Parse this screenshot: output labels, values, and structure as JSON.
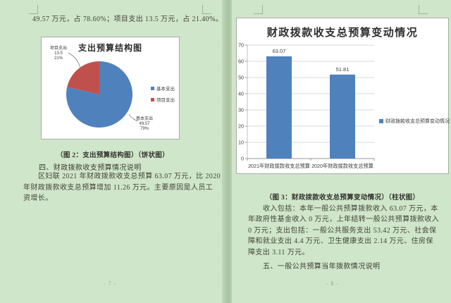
{
  "app": {
    "view": "document-editor-eye-protection-mode",
    "colors": {
      "background_green": "#cfe6ca",
      "page_gap_green": "#aec8a8",
      "chart_background": "#ffffff",
      "bar_blue": "#4f81bd",
      "pie_red": "#c0504d",
      "body_text": "#44443a",
      "page_number_text": "#8da58c"
    }
  },
  "left_page": {
    "top_line": "49.57 万元，占 78.60%；项目支出 13.5 万元，占 21.40%。",
    "caption": "（图 2：支出预算结构图）（饼状图）",
    "heading": "四、财政拨款收支预算情况说明",
    "para": [
      "区妇联 2021 年财政拨款收支总预算 63.07 万元，比 2020",
      "年财政拨款收支总预算增加 11.26 万元。主要原因是人员工",
      "资增长。"
    ],
    "page_number": "- 7 -"
  },
  "right_page": {
    "caption": "（图 3：财政拨款收支总预算变动情况）（柱状图）",
    "para": [
      "收入包括：本年一般公共预算拨款收入 63.07 万元，本",
      "年政府性基金收入 0 万元，上年结转一般公共预算拨款收入",
      "0 万元；支出包括：一般公共服务支出 53.42 万元、社会保",
      "障和就业支出 4.4 万元、卫生健康支出 2.14 万元、住房保",
      "障支出 3.11 万元。"
    ],
    "heading": "五、一般公共预算当年拨款情况说明",
    "page_number": "- 8 -"
  },
  "chart_data": [
    {
      "type": "pie",
      "title": "支出预算结构图",
      "labels": [
        "基本支出",
        "项目支出"
      ],
      "values": [
        49.57,
        13.5
      ],
      "value_labels": [
        "49.57",
        "13.5"
      ],
      "percents": [
        "79%",
        "21%"
      ],
      "colors": [
        "#4f81bd",
        "#c0504d"
      ],
      "legend_position": "right",
      "start_angle": "top-clockwise"
    },
    {
      "type": "bar",
      "title": "财政拨款收支总预算变动情况",
      "series_name": "财政拨款收支总预算变动情况",
      "categories": [
        "2021年财政拨款收支总预算",
        "2020年财政拨款收支总预算"
      ],
      "values": [
        63.07,
        51.81
      ],
      "value_labels": [
        "63.07",
        "51.81"
      ],
      "ylim": [
        0,
        70
      ],
      "ytick_step": 10,
      "color": "#4f81bd",
      "grid": true,
      "legend_position": "right"
    }
  ]
}
